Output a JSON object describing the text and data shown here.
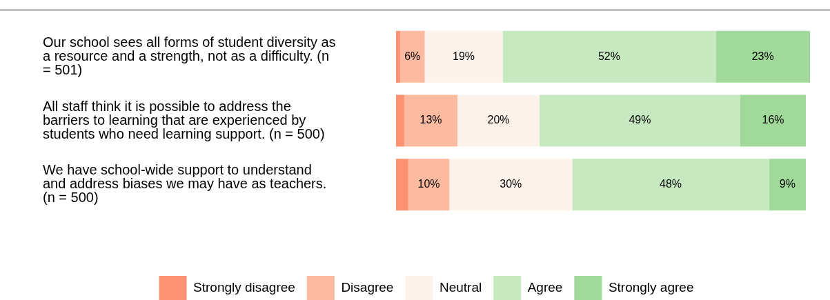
{
  "chart_data": {
    "type": "bar",
    "orientation": "horizontal",
    "stacked": true,
    "legend": "bottom",
    "categories": [
      "Our school sees all forms of student diversity as a resource and a strength, not as a difficulty. (n = 501)",
      "All staff think it is possible to address the barriers to learning that are experienced by students who need learning support. (n = 500)",
      "We have school-wide support to understand and address biases we may have as teachers. (n = 500)"
    ],
    "series": [
      {
        "name": "Strongly disagree",
        "color": "#fc9272",
        "values": [
          1,
          2,
          3
        ],
        "value_labels": [
          null,
          null,
          null
        ]
      },
      {
        "name": "Disagree",
        "color": "#fcbba1",
        "values": [
          6,
          13,
          10
        ],
        "value_labels": [
          "6%",
          "13%",
          "10%"
        ]
      },
      {
        "name": "Neutral",
        "color": "#fef3ea",
        "values": [
          19,
          20,
          30
        ],
        "value_labels": [
          "19%",
          "20%",
          "30%"
        ]
      },
      {
        "name": "Agree",
        "color": "#c7e9c0",
        "values": [
          52,
          49,
          48
        ],
        "value_labels": [
          "52%",
          "49%",
          "48%"
        ]
      },
      {
        "name": "Strongly agree",
        "color": "#a1d99b",
        "values": [
          23,
          16,
          9
        ],
        "value_labels": [
          "23%",
          "16%",
          "9%"
        ]
      }
    ]
  }
}
